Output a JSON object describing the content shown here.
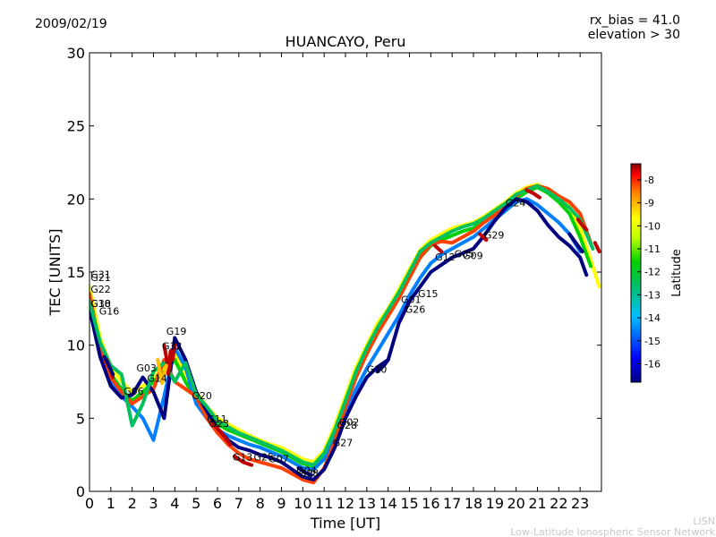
{
  "header": {
    "date": "2009/02/19",
    "rx_bias": "rx_bias = 41.0",
    "elevation": "elevation > 30"
  },
  "footer": {
    "credit_short": "LISN",
    "credit_long": "Low-Latitude Ionospheric Sensor Network"
  },
  "colors": {
    "colormap": [
      "#00007f",
      "#0000ff",
      "#007fff",
      "#00bfbf",
      "#00c060",
      "#00d000",
      "#7fff00",
      "#ffff00",
      "#ffbf00",
      "#ff4000",
      "#bf0000",
      "#7f0000"
    ]
  },
  "chart_data": {
    "type": "scatter",
    "title": "HUANCAYO, Peru",
    "xlabel": "Time [UT]",
    "ylabel": "TEC [UNITS]",
    "xlim": [
      0,
      24
    ],
    "ylim": [
      0,
      30
    ],
    "xticks": [
      "0",
      "1",
      "2",
      "3",
      "4",
      "5",
      "6",
      "7",
      "8",
      "9",
      "10",
      "11",
      "12",
      "13",
      "14",
      "15",
      "16",
      "17",
      "18",
      "19",
      "20",
      "21",
      "22",
      "23"
    ],
    "yticks": [
      "0",
      "5",
      "10",
      "15",
      "20",
      "25",
      "30"
    ],
    "grid": false,
    "colorbar": {
      "label": "Latitude",
      "range": [
        -16.8,
        -7.3
      ],
      "ticks": [
        "-8",
        "-9",
        "-10",
        "-11",
        "-12",
        "-13",
        "-14",
        "-15",
        "-16"
      ]
    },
    "series": [
      {
        "lat": -11.0,
        "x": [
          0.0,
          0.5,
          1.0,
          1.5,
          2.0,
          2.5,
          3.0,
          3.5,
          4.0,
          4.5,
          5.0,
          5.5,
          6.0,
          6.5,
          7.0,
          7.5,
          8.0,
          8.5,
          9.0,
          9.5,
          10.0,
          10.5,
          11.0,
          11.5,
          12.0,
          12.5,
          13.0,
          13.5,
          14.0,
          14.5,
          15.0,
          15.5,
          16.0,
          16.5,
          17.0,
          17.5,
          18.0,
          18.5,
          19.0,
          19.5,
          20.0,
          20.5,
          21.0,
          21.5,
          22.0,
          22.5,
          23.0,
          23.5,
          23.9
        ],
        "y": [
          14.0,
          10.5,
          8.5,
          7.5,
          6.8,
          7.2,
          7.8,
          8.5,
          9.5,
          8.0,
          6.8,
          5.8,
          5.0,
          4.6,
          4.2,
          3.8,
          3.5,
          3.2,
          3.0,
          2.6,
          2.2,
          2.0,
          2.8,
          4.5,
          6.5,
          8.5,
          10.0,
          11.5,
          12.5,
          13.8,
          15.2,
          16.5,
          17.2,
          17.6,
          18.0,
          18.2,
          18.4,
          18.8,
          19.3,
          19.8,
          20.4,
          20.8,
          21.0,
          20.6,
          20.2,
          19.5,
          18.0,
          15.8,
          14.0
        ]
      },
      {
        "lat": -12.5,
        "x": [
          0.0,
          0.5,
          1.0,
          1.5,
          2.0,
          2.5,
          3.0,
          3.5,
          4.0,
          4.5,
          5.0,
          5.5,
          6.0,
          6.5,
          7.0,
          7.5,
          8.0,
          8.5,
          9.0,
          9.5,
          10.0,
          10.5,
          11.0,
          11.5,
          12.0,
          12.5,
          13.0,
          13.5,
          14.0,
          14.5,
          15.0,
          15.5,
          16.0,
          16.5,
          17.0,
          17.5,
          18.0,
          18.5,
          19.0,
          19.5,
          20.0,
          20.5,
          21.0,
          21.5,
          22.0,
          22.5,
          23.0,
          23.5
        ],
        "y": [
          13.2,
          10.0,
          8.0,
          7.0,
          6.2,
          6.8,
          7.5,
          8.2,
          9.0,
          7.5,
          6.3,
          5.3,
          4.6,
          4.2,
          3.9,
          3.6,
          3.3,
          3.0,
          2.7,
          2.3,
          1.9,
          1.7,
          2.4,
          4.0,
          6.0,
          8.0,
          9.6,
          11.0,
          12.2,
          13.4,
          14.8,
          16.0,
          16.8,
          17.2,
          17.5,
          17.8,
          18.0,
          18.5,
          19.0,
          19.5,
          20.0,
          20.5,
          20.8,
          20.4,
          19.8,
          19.0,
          17.4,
          15.4
        ]
      },
      {
        "lat": -14.8,
        "x": [
          0.0,
          0.5,
          1.0,
          1.5,
          2.0,
          2.5,
          3.0,
          3.5,
          4.0,
          4.5,
          5.0,
          5.5,
          6.0,
          6.5,
          7.0,
          7.5,
          8.0,
          8.5,
          9.0,
          9.5,
          10.0,
          10.5,
          11.0,
          11.5,
          12.0,
          12.5,
          13.0,
          13.5,
          14.0,
          14.5,
          15.0,
          15.5,
          16.0,
          16.5,
          17.0,
          17.5,
          18.0,
          18.5,
          19.0,
          19.5,
          20.0,
          20.5,
          21.0,
          21.5,
          22.0,
          22.5,
          23.0
        ],
        "y": [
          12.8,
          9.5,
          7.5,
          6.5,
          5.8,
          5.0,
          3.5,
          6.5,
          9.8,
          8.5,
          6.0,
          5.0,
          4.2,
          3.8,
          3.5,
          3.2,
          3.0,
          2.7,
          2.4,
          2.0,
          1.6,
          1.5,
          2.2,
          3.6,
          5.4,
          7.0,
          8.4,
          9.6,
          10.8,
          12.0,
          13.4,
          14.6,
          15.6,
          16.2,
          16.6,
          17.0,
          17.4,
          18.0,
          18.6,
          19.2,
          19.8,
          20.0,
          19.6,
          19.0,
          18.4,
          17.6,
          16.4
        ]
      },
      {
        "lat": -9.2,
        "x": [
          0.0,
          0.5,
          1.0,
          1.5,
          2.0,
          2.5,
          3.0,
          3.5,
          4.0,
          4.5,
          5.0,
          5.5,
          6.0,
          6.5,
          7.0,
          7.5,
          8.0,
          8.5,
          9.0,
          9.5,
          10.0,
          10.5,
          11.0,
          11.5,
          12.0,
          12.5,
          13.0,
          13.5,
          14.0,
          14.5,
          15.0,
          15.5,
          16.0,
          16.5,
          17.0,
          17.5,
          18.0,
          18.5,
          19.0,
          19.5,
          20.0,
          20.5,
          21.0,
          21.5,
          22.0,
          22.5,
          23.0,
          23.5
        ],
        "y": [
          13.5,
          9.8,
          7.8,
          6.8,
          6.0,
          6.5,
          7.0,
          9.0,
          7.5,
          7.0,
          6.5,
          5.0,
          4.0,
          3.2,
          2.6,
          2.2,
          2.0,
          1.8,
          1.6,
          1.2,
          0.8,
          0.6,
          1.6,
          3.4,
          5.8,
          7.8,
          9.4,
          10.8,
          12.0,
          13.2,
          14.6,
          16.0,
          16.9,
          17.1,
          17.0,
          17.4,
          17.8,
          18.4,
          18.9,
          19.6,
          20.2,
          20.7,
          20.9,
          20.7,
          20.2,
          19.8,
          19.0,
          17.0
        ]
      },
      {
        "lat": -16.2,
        "x": [
          0.0,
          0.5,
          1.0,
          1.5,
          2.0,
          2.5,
          3.0,
          3.5,
          4.0,
          4.5,
          5.0,
          5.5,
          6.0,
          6.5,
          7.0,
          7.5,
          8.0,
          8.5,
          9.0,
          9.5,
          10.0,
          10.5,
          11.0,
          11.5,
          12.0,
          12.5,
          13.0,
          13.5,
          14.0,
          14.5,
          15.0,
          15.5,
          16.0,
          16.5,
          17.0,
          17.5,
          18.0,
          18.5,
          19.0,
          19.5,
          20.0,
          20.5,
          21.0,
          21.5,
          22.0,
          22.5,
          23.0,
          23.3
        ],
        "y": [
          12.5,
          9.2,
          7.2,
          6.4,
          6.6,
          7.8,
          6.8,
          5.0,
          10.5,
          9.0,
          6.8,
          5.5,
          4.3,
          3.5,
          3.0,
          2.8,
          2.5,
          2.3,
          2.0,
          1.5,
          1.0,
          0.8,
          1.5,
          3.0,
          5.0,
          6.5,
          7.8,
          8.5,
          9.0,
          11.5,
          13.0,
          14.0,
          15.0,
          15.5,
          16.0,
          16.3,
          16.6,
          17.5,
          18.5,
          19.4,
          20.0,
          19.8,
          19.2,
          18.2,
          17.4,
          16.8,
          16.0,
          14.8
        ]
      },
      {
        "lat": -13.3,
        "x": [
          0.0,
          0.5,
          1.0,
          1.5,
          2.0,
          2.5,
          3.0,
          3.5,
          4.0,
          4.5,
          5.0,
          5.5,
          6.0,
          6.5,
          7.0,
          7.5,
          8.0,
          8.5,
          9.0,
          9.5,
          10.0,
          10.5,
          11.0,
          11.5,
          12.0,
          12.5,
          13.0,
          13.5,
          14.0,
          14.5,
          15.0,
          15.5,
          16.0,
          16.5,
          17.0,
          17.5,
          18.0,
          18.5,
          19.0,
          19.5,
          20.0,
          20.5,
          21.0,
          21.5,
          22.0,
          22.5,
          23.0,
          23.6
        ],
        "y": [
          13.0,
          10.2,
          8.6,
          8.0,
          4.5,
          6.0,
          8.2,
          8.8,
          7.5,
          8.8,
          6.6,
          5.8,
          4.8,
          4.4,
          4.0,
          3.7,
          3.4,
          3.1,
          2.8,
          2.4,
          2.0,
          1.8,
          2.6,
          4.2,
          6.2,
          8.2,
          9.8,
          11.2,
          12.4,
          13.6,
          15.0,
          16.4,
          17.0,
          17.4,
          17.8,
          18.1,
          18.3,
          18.7,
          19.2,
          19.7,
          20.3,
          20.6,
          20.9,
          20.5,
          20.0,
          19.4,
          18.6,
          16.6
        ]
      },
      {
        "lat": -8.2,
        "x": [
          3.5,
          3.6,
          3.7,
          3.8,
          3.9,
          4.0
        ],
        "y": [
          10.0,
          9.2,
          8.0,
          9.6,
          9.0,
          10.0
        ]
      },
      {
        "lat": -8.2,
        "x": [
          5.8,
          6.0,
          6.2,
          6.4,
          6.6
        ],
        "y": [
          4.6,
          4.3,
          4.0,
          3.6,
          3.2
        ]
      },
      {
        "lat": -8.2,
        "x": [
          6.8,
          7.0,
          7.2,
          7.4,
          7.6
        ],
        "y": [
          2.4,
          2.2,
          2.0,
          1.9,
          1.8
        ]
      },
      {
        "lat": -8.2,
        "x": [
          16.2,
          16.5
        ],
        "y": [
          16.8,
          16.4
        ]
      },
      {
        "lat": -8.2,
        "x": [
          18.3,
          18.6
        ],
        "y": [
          17.6,
          17.2
        ]
      },
      {
        "lat": -8.2,
        "x": [
          20.5,
          20.8,
          21.1
        ],
        "y": [
          20.6,
          20.4,
          20.1
        ]
      },
      {
        "lat": -8.2,
        "x": [
          22.9,
          23.1,
          23.3
        ],
        "y": [
          18.6,
          18.2,
          17.9
        ]
      },
      {
        "lat": -8.2,
        "x": [
          23.7,
          23.9
        ],
        "y": [
          17.0,
          16.4
        ]
      },
      {
        "lat": -8.2,
        "x": [
          0.8,
          1.0,
          1.1
        ],
        "y": [
          9.0,
          8.3,
          7.8
        ]
      },
      {
        "lat": -16.4,
        "x": [
          0.7,
          0.9,
          1.1
        ],
        "y": [
          9.2,
          8.6,
          8.0
        ]
      },
      {
        "lat": -16.4,
        "x": [
          13.5,
          13.8,
          14.0
        ],
        "y": [
          8.2,
          8.6,
          9.0
        ]
      },
      {
        "lat": -16.4,
        "x": [
          9.8,
          10.1,
          10.4
        ],
        "y": [
          1.6,
          1.3,
          1.1
        ]
      },
      {
        "lat": -16.4,
        "x": [
          22.5,
          22.8,
          23.1
        ],
        "y": [
          17.6,
          17.0,
          16.4
        ]
      },
      {
        "lat": -10.3,
        "x": [
          3.2,
          3.4,
          3.6
        ],
        "y": [
          9.0,
          7.4,
          8.6
        ]
      }
    ],
    "satellite_labels": [
      {
        "text": "G31",
        "x": 0.05,
        "y": 14.6
      },
      {
        "text": "G21",
        "x": 0.05,
        "y": 14.4
      },
      {
        "text": "G22",
        "x": 0.05,
        "y": 13.6
      },
      {
        "text": "G18",
        "x": 0.05,
        "y": 12.6
      },
      {
        "text": "G30",
        "x": 0.05,
        "y": 12.6
      },
      {
        "text": "G16",
        "x": 0.45,
        "y": 12.1
      },
      {
        "text": "G19",
        "x": 3.6,
        "y": 10.7
      },
      {
        "text": "G32",
        "x": 3.4,
        "y": 9.7
      },
      {
        "text": "G03",
        "x": 2.2,
        "y": 8.2
      },
      {
        "text": "G14",
        "x": 2.7,
        "y": 7.5
      },
      {
        "text": "G06",
        "x": 1.6,
        "y": 6.6
      },
      {
        "text": "G20",
        "x": 4.8,
        "y": 6.3
      },
      {
        "text": "G11",
        "x": 5.5,
        "y": 4.7
      },
      {
        "text": "G23",
        "x": 5.6,
        "y": 4.4
      },
      {
        "text": "G13",
        "x": 6.7,
        "y": 2.1
      },
      {
        "text": "G25",
        "x": 7.7,
        "y": 2.1
      },
      {
        "text": "G07",
        "x": 8.4,
        "y": 2.0
      },
      {
        "text": "G04",
        "x": 9.7,
        "y": 1.2
      },
      {
        "text": "G08",
        "x": 9.8,
        "y": 1.0
      },
      {
        "text": "G02",
        "x": 11.7,
        "y": 4.5
      },
      {
        "text": "G28",
        "x": 11.6,
        "y": 4.3
      },
      {
        "text": "G27",
        "x": 11.4,
        "y": 3.1
      },
      {
        "text": "G10",
        "x": 13.0,
        "y": 8.1
      },
      {
        "text": "G01",
        "x": 14.6,
        "y": 12.9
      },
      {
        "text": "G15",
        "x": 15.4,
        "y": 13.3
      },
      {
        "text": "G26",
        "x": 14.8,
        "y": 12.2
      },
      {
        "text": "G12",
        "x": 16.2,
        "y": 15.8
      },
      {
        "text": "G05",
        "x": 17.1,
        "y": 16.0
      },
      {
        "text": "G09",
        "x": 17.5,
        "y": 15.9
      },
      {
        "text": "G29",
        "x": 18.5,
        "y": 17.3
      },
      {
        "text": "G24",
        "x": 19.5,
        "y": 19.5
      }
    ]
  }
}
